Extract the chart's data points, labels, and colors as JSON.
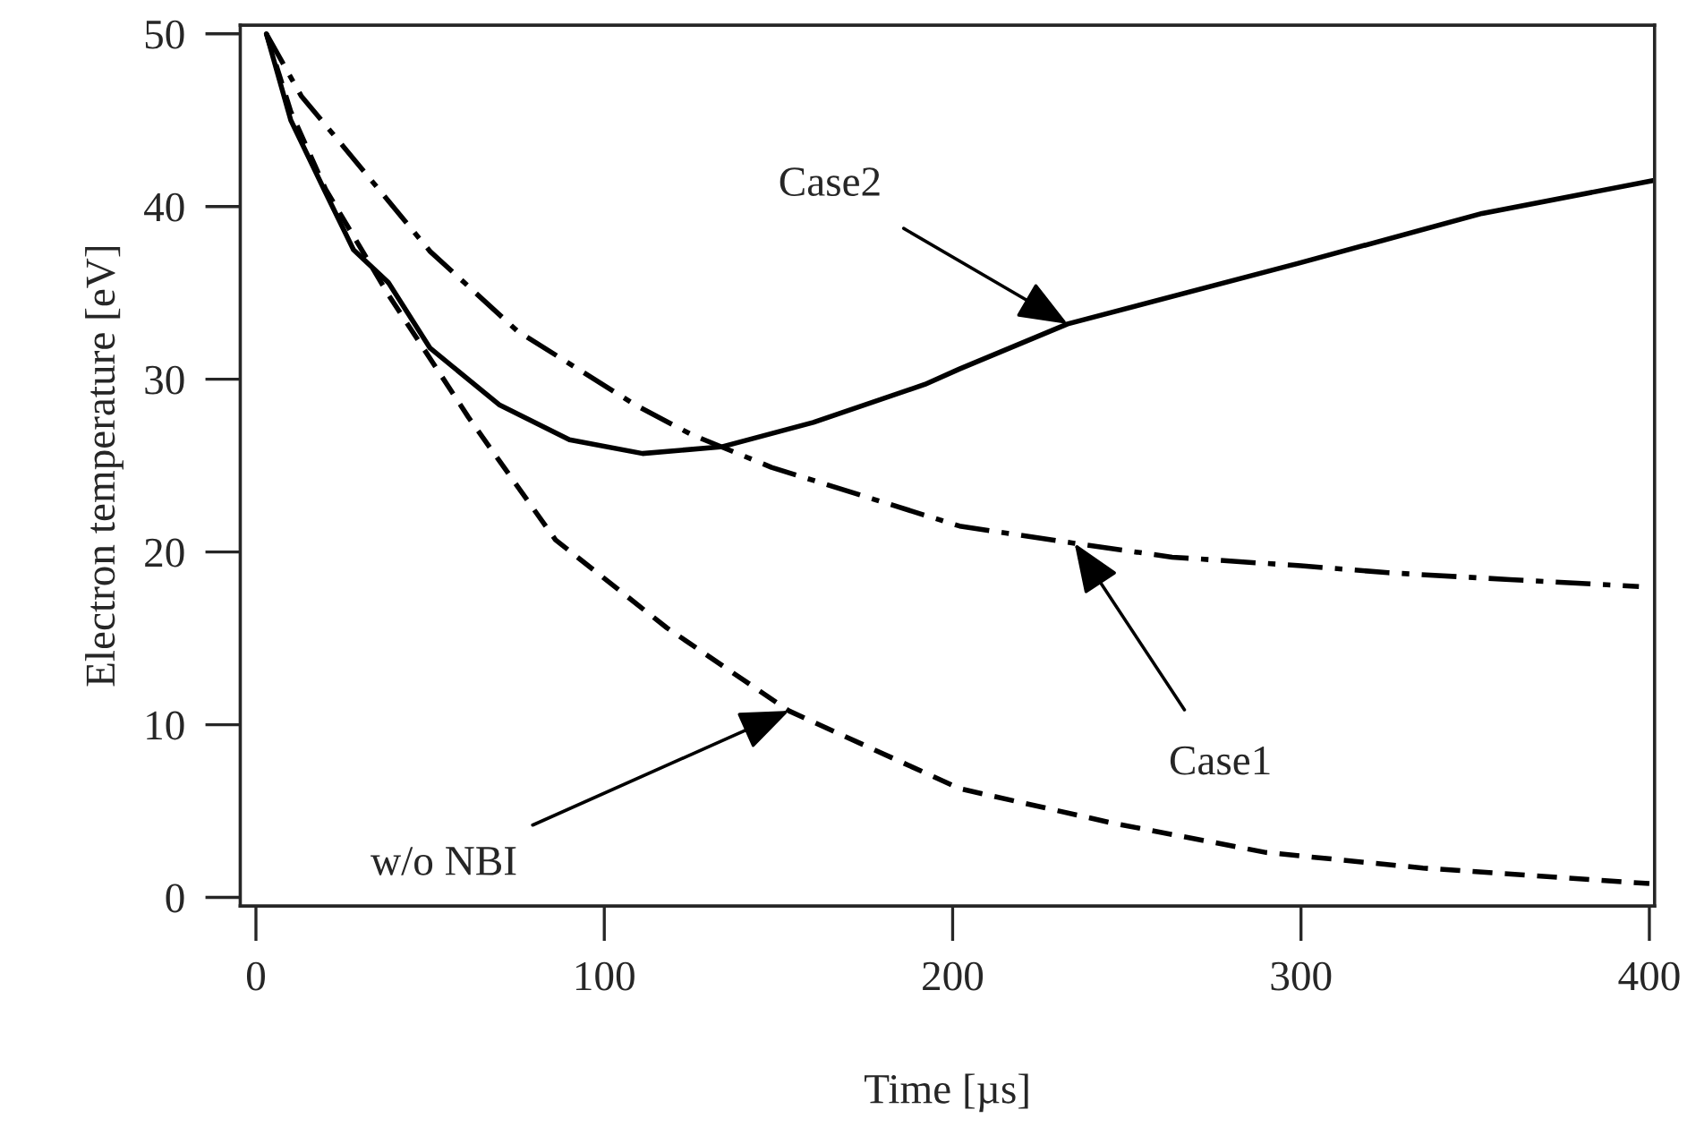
{
  "chart_data": {
    "type": "line",
    "xlabel": "Time [µs]",
    "ylabel": "Electron temperature [eV]",
    "xlim": [
      -4.5,
      401.5
    ],
    "ylim": [
      -0.5,
      50.5
    ],
    "xticks": [
      0,
      100,
      200,
      300,
      400
    ],
    "yticks": [
      0,
      10,
      20,
      30,
      40,
      50
    ],
    "grid": false,
    "legend": false,
    "marker": "none",
    "series": [
      {
        "color": "#000000",
        "line_style": "solid",
        "x": [
          3,
          10,
          20,
          28,
          38,
          50,
          70,
          90,
          111,
          134,
          160,
          192,
          202,
          233,
          299,
          352,
          401
        ],
        "values": [
          50,
          45,
          40.8,
          37.5,
          35.6,
          31.8,
          28.5,
          26.5,
          25.7,
          26.1,
          27.5,
          29.7,
          30.6,
          33.2,
          36.7,
          39.6,
          41.5
        ]
      },
      {
        "color": "#000000",
        "line_style": "dashdot",
        "x": [
          3,
          13,
          25,
          50,
          75,
          109,
          125,
          148,
          202,
          235,
          263,
          300,
          325,
          360,
          397
        ],
        "values": [
          50,
          46.4,
          43.5,
          37.4,
          32.8,
          28.5,
          26.8,
          24.9,
          21.5,
          20.5,
          19.7,
          19.2,
          18.8,
          18.4,
          18.0
        ]
      },
      {
        "color": "#000000",
        "line_style": "dashed",
        "x": [
          3,
          10,
          20,
          38,
          61,
          86,
          118,
          153,
          202,
          246,
          290,
          335,
          400
        ],
        "values": [
          50,
          45.5,
          41,
          34.9,
          27.8,
          20.7,
          15.6,
          10.8,
          6.3,
          4.3,
          2.6,
          1.7,
          0.8
        ]
      }
    ],
    "annotations": [
      {
        "text": "Case2",
        "x": 233,
        "y": 33.2
      },
      {
        "text": "Case1",
        "x": 235,
        "y": 20.5
      },
      {
        "text": "w/o NBI",
        "x": 153,
        "y": 10.8
      }
    ]
  }
}
